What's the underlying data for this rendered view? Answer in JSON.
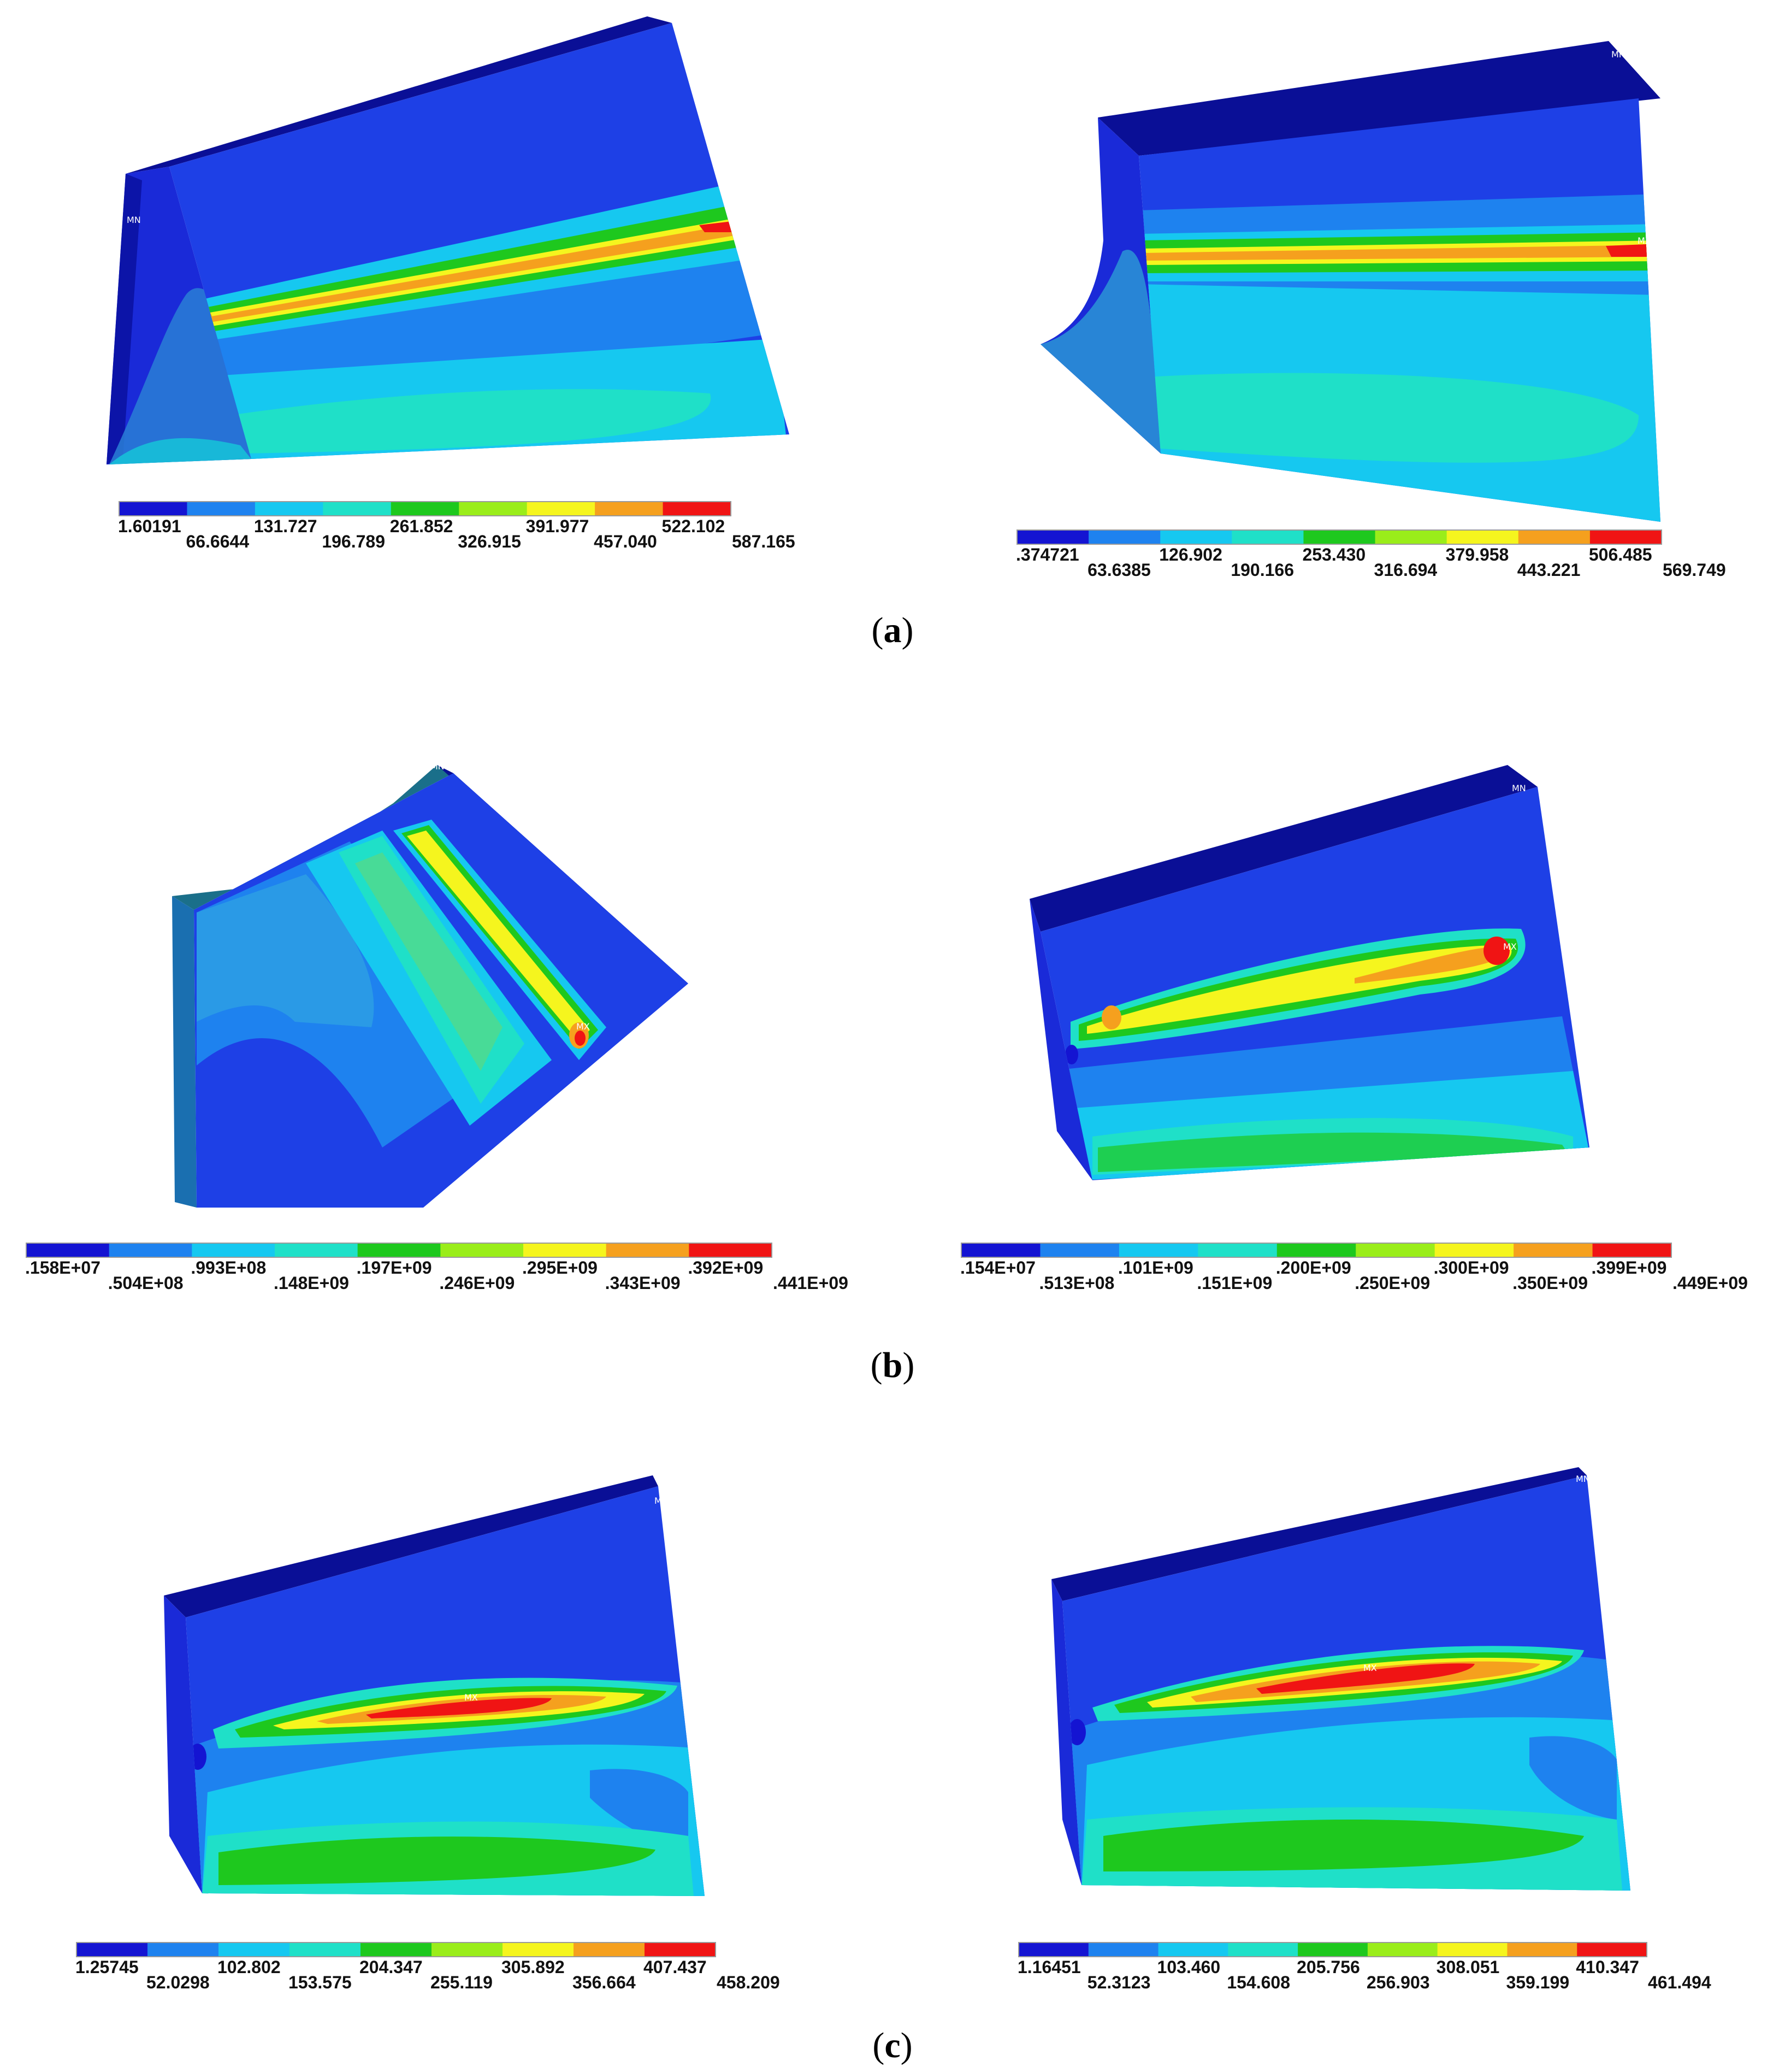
{
  "figure": {
    "palette": [
      "#1414d2",
      "#1e82ef",
      "#16c8f0",
      "#1fe0c8",
      "#1ec81e",
      "#9aed1a",
      "#f5f51e",
      "#f5a01e",
      "#f01414"
    ],
    "panels": [
      {
        "id": "a-left",
        "min_label": "MN",
        "max_label": "MX",
        "legend": [
          "1.60191",
          "66.6644",
          "131.727",
          "196.789",
          "261.852",
          "326.915",
          "391.977",
          "457.040",
          "522.102",
          "587.165"
        ]
      },
      {
        "id": "a-right",
        "min_label": "MN",
        "max_label": "MX",
        "legend": [
          ".374721",
          "63.6385",
          "126.902",
          "190.166",
          "253.430",
          "316.694",
          "379.958",
          "443.221",
          "506.485",
          "569.749"
        ]
      },
      {
        "id": "b-left",
        "min_label": "MN",
        "max_label": "MX",
        "legend": [
          ".158E+07",
          ".504E+08",
          ".993E+08",
          ".148E+09",
          ".197E+09",
          ".246E+09",
          ".295E+09",
          ".343E+09",
          ".392E+09",
          ".441E+09"
        ]
      },
      {
        "id": "b-right",
        "min_label": "MN",
        "max_label": "MX",
        "legend": [
          ".154E+07",
          ".513E+08",
          ".101E+09",
          ".151E+09",
          ".200E+09",
          ".250E+09",
          ".300E+09",
          ".350E+09",
          ".399E+09",
          ".449E+09"
        ]
      },
      {
        "id": "c-left",
        "min_label": "MN",
        "max_label": "MX",
        "legend": [
          "1.25745",
          "52.0298",
          "102.802",
          "153.575",
          "204.347",
          "255.119",
          "305.892",
          "356.664",
          "407.437",
          "458.209"
        ]
      },
      {
        "id": "c-right",
        "min_label": "MN",
        "max_label": "MX",
        "legend": [
          "1.16451",
          "52.3123",
          "103.460",
          "154.608",
          "205.756",
          "256.903",
          "308.051",
          "359.199",
          "410.347",
          "461.494"
        ]
      }
    ],
    "captions": [
      {
        "open": "(",
        "letter": "a",
        "close": ")"
      },
      {
        "open": "(",
        "letter": "b",
        "close": ")"
      },
      {
        "open": "(",
        "letter": "c",
        "close": ")"
      }
    ]
  }
}
